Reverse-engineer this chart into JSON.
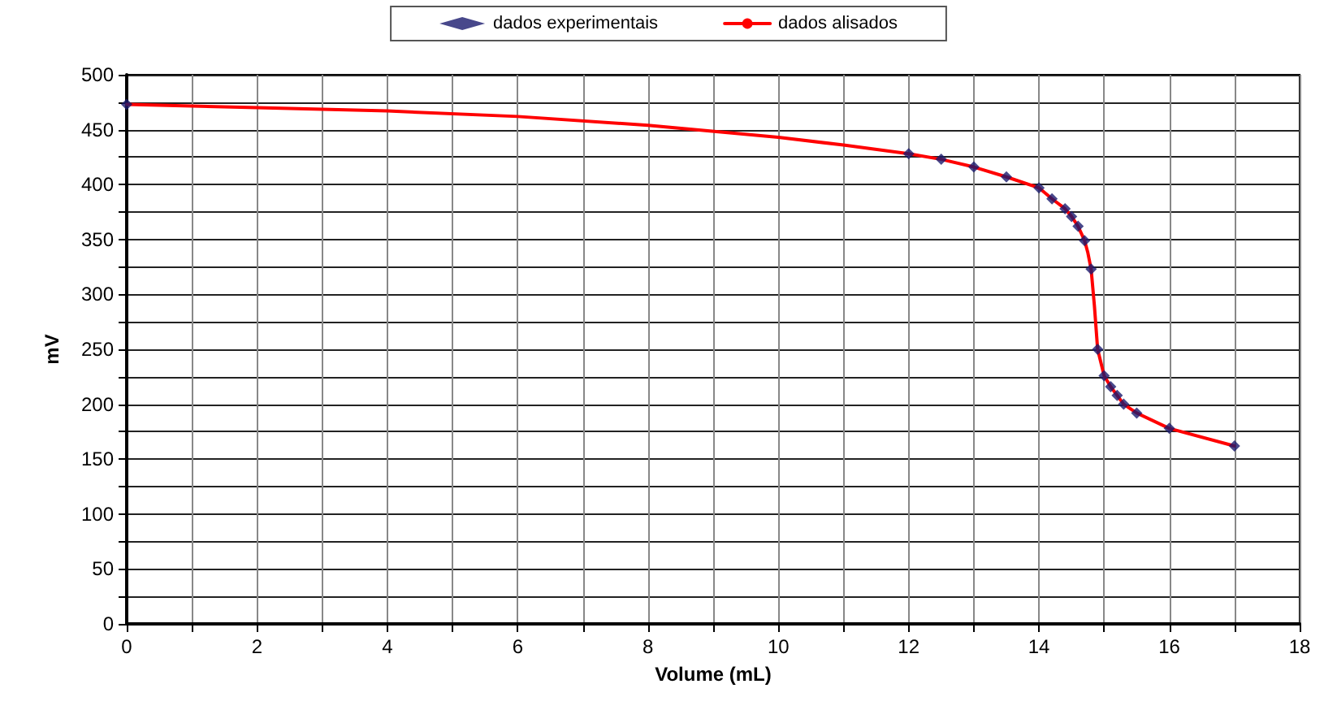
{
  "chart_data": {
    "type": "line",
    "xlabel": "Volume (mL)",
    "ylabel": "mV",
    "xlim": [
      0,
      18
    ],
    "ylim": [
      0,
      500
    ],
    "xticks": [
      0,
      {
        "value": 1,
        "label": null
      },
      2,
      {
        "value": 3,
        "label": null
      },
      4,
      {
        "value": 5,
        "label": null
      },
      6,
      {
        "value": 7,
        "label": null
      },
      8,
      {
        "value": 9,
        "label": null
      },
      10,
      {
        "value": 11,
        "label": null
      },
      12,
      {
        "value": 13,
        "label": null
      },
      14,
      {
        "value": 15,
        "label": null
      },
      16,
      {
        "value": 17,
        "label": null
      },
      18
    ],
    "yticks": [
      0,
      {
        "value": 25,
        "label": null
      },
      50,
      {
        "value": 75,
        "label": null
      },
      100,
      {
        "value": 125,
        "label": null
      },
      150,
      {
        "value": 175,
        "label": null
      },
      200,
      {
        "value": 225,
        "label": null
      },
      250,
      {
        "value": 275,
        "label": null
      },
      300,
      {
        "value": 325,
        "label": null
      },
      350,
      {
        "value": 375,
        "label": null
      },
      400,
      {
        "value": 425,
        "label": null
      },
      450,
      {
        "value": 475,
        "label": null
      },
      500
    ],
    "grid": true,
    "legend": "top",
    "series": [
      {
        "name": "dados experimentais",
        "type": "scatter",
        "marker": "diamond",
        "color": "#1a1a6e",
        "x": [
          0,
          12,
          12.5,
          13,
          13.5,
          14,
          14.2,
          14.4,
          14.5,
          14.6,
          14.7,
          14.8,
          14.9,
          15,
          15.1,
          15.2,
          15.3,
          15.5,
          16,
          17
        ],
        "values": [
          473,
          428,
          423,
          416,
          407,
          397,
          387,
          378,
          371,
          362,
          349,
          323,
          250,
          226,
          216,
          208,
          200,
          192,
          178,
          162
        ]
      },
      {
        "name": "dados alisados",
        "marker": "none",
        "line_style": "solid",
        "color": "#ff0000",
        "x": [
          0,
          2,
          4,
          6,
          8,
          10,
          11,
          12,
          12.5,
          13,
          13.5,
          14,
          14.2,
          14.4,
          14.5,
          14.6,
          14.7,
          14.75,
          14.8,
          14.85,
          14.9,
          15,
          15.1,
          15.2,
          15.3,
          15.5,
          16,
          17
        ],
        "values": [
          473,
          470,
          467,
          462,
          454,
          443,
          436,
          428,
          423,
          416,
          407,
          397,
          387,
          378,
          371,
          362,
          349,
          338,
          323,
          290,
          250,
          226,
          216,
          208,
          200,
          192,
          178,
          162
        ]
      }
    ]
  }
}
